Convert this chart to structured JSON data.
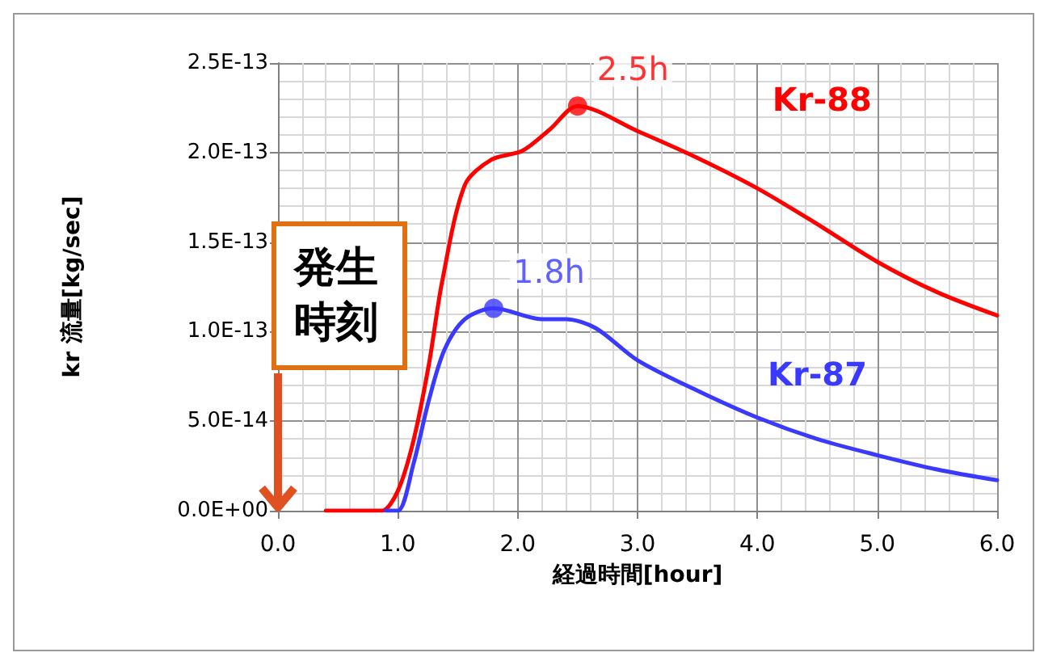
{
  "chart_data": {
    "type": "line",
    "xlabel": "経過時間[hour]",
    "ylabel": "kr 流量[kg/sec]",
    "xlim": [
      0,
      6
    ],
    "xticks": [
      {
        "value": 0,
        "label": "0.0"
      },
      {
        "value": 1,
        "label": "1.0"
      },
      {
        "value": 2,
        "label": "2.0"
      },
      {
        "value": 3,
        "label": "3.0"
      },
      {
        "value": 4,
        "label": "4.0"
      },
      {
        "value": 5,
        "label": "5.0"
      },
      {
        "value": 6,
        "label": "6.0"
      }
    ],
    "ylim": [
      0,
      2.5e-13
    ],
    "yticks": [
      {
        "value": 0,
        "label": "0.0E+00"
      },
      {
        "value": 5e-14,
        "label": "5.0E-14"
      },
      {
        "value": 1e-13,
        "label": "1.0E-13"
      },
      {
        "value": 1.5e-13,
        "label": "1.5E-13"
      },
      {
        "value": 2e-13,
        "label": "2.0E-13"
      },
      {
        "value": 2.5e-13,
        "label": "2.5E-13"
      }
    ],
    "grid": true,
    "legend": false,
    "marker": "none",
    "line_style": "solid",
    "series": [
      {
        "name": "Kr-88",
        "color": "#ff0000",
        "x": [
          0.4,
          0.8,
          0.87,
          1.0,
          1.13,
          1.26,
          1.37,
          1.56,
          1.78,
          2.04,
          2.27,
          2.5,
          3.0,
          3.5,
          4.0,
          4.5,
          5.0,
          5.5,
          6.0
        ],
        "values": [
          0,
          0,
          0,
          1.1e-14,
          3.9e-14,
          8.2e-14,
          1.28e-13,
          1.82e-13,
          1.96e-13,
          2.01e-13,
          2.13e-13,
          2.26e-13,
          2.12e-13,
          1.97e-13,
          1.8e-13,
          1.6e-13,
          1.39e-13,
          1.22e-13,
          1.09e-13
        ]
      },
      {
        "name": "Kr-87",
        "color": "#3a3aff",
        "x": [
          0.9,
          1.0,
          1.13,
          1.26,
          1.39,
          1.56,
          1.8,
          2.2,
          2.4,
          2.65,
          3.0,
          3.5,
          4.0,
          4.5,
          5.0,
          5.5,
          6.0
        ],
        "values": [
          0,
          0,
          2.6e-14,
          6.2e-14,
          9e-14,
          1.07e-13,
          1.13e-13,
          1.07e-13,
          1.07e-13,
          1.02e-13,
          8.4e-14,
          6.7e-14,
          5.2e-14,
          4e-14,
          3.1e-14,
          2.3e-14,
          1.7e-14
        ]
      }
    ],
    "annotations": [
      {
        "text": "2.5h",
        "x": 2.5,
        "y": 2.26e-13
      },
      {
        "text": "1.8h",
        "x": 1.8,
        "y": 1.13e-13
      },
      "発生時刻"
    ]
  }
}
